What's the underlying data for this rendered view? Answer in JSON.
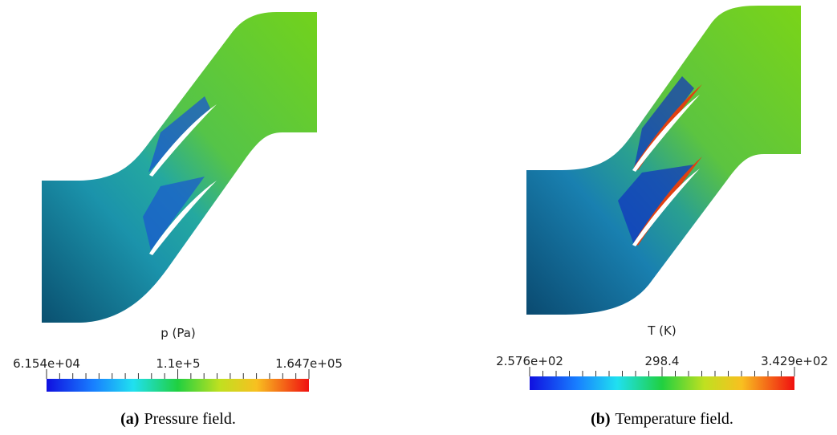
{
  "panels": [
    {
      "colorbar": {
        "title": "p (Pa)",
        "labels": [
          "6.154e+04",
          "1.1e+5",
          "1.647e+05"
        ]
      },
      "caption": {
        "label": "(a)",
        "text": "Pressure field."
      }
    },
    {
      "colorbar": {
        "title": "T (K)",
        "labels": [
          "2.576e+02",
          "298.4",
          "3.429e+02"
        ]
      },
      "caption": {
        "label": "(b)",
        "text": "Temperature field."
      }
    }
  ]
}
